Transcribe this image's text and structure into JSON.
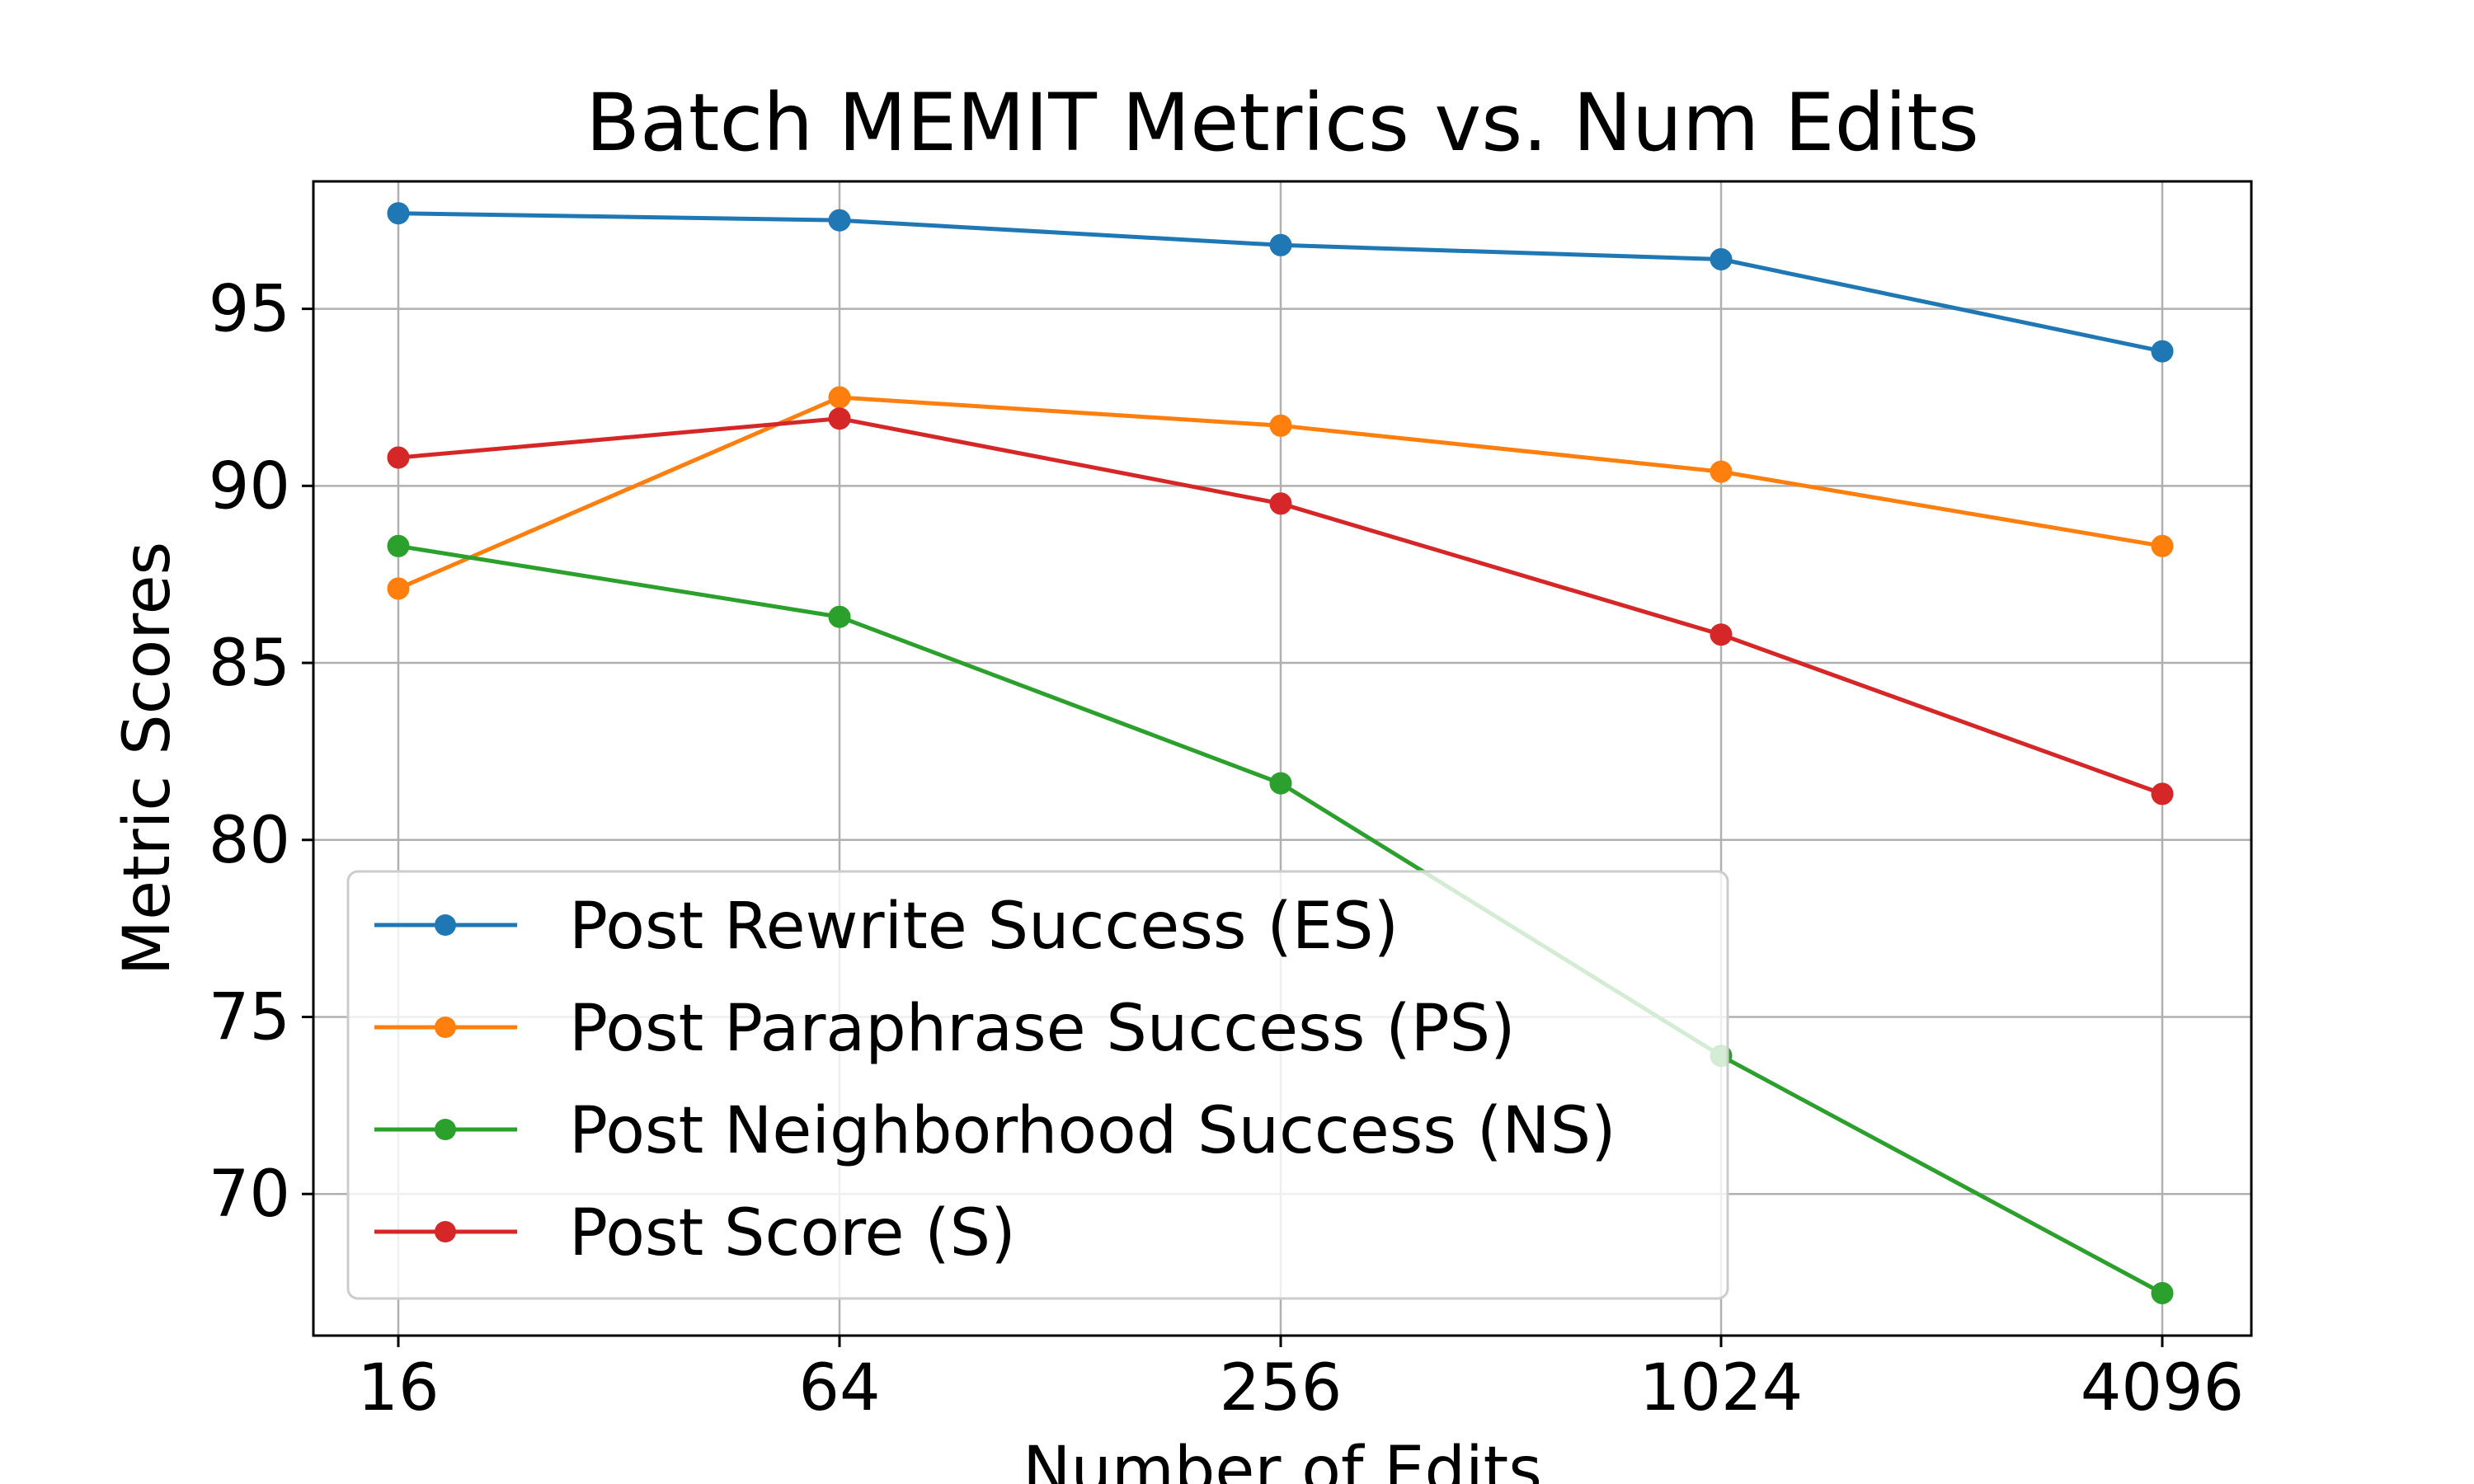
{
  "chart_data": {
    "type": "line",
    "title": "Batch MEMIT Metrics vs. Num Edits",
    "xlabel": "Number of Edits",
    "ylabel": "Metric Scores",
    "x_scale": "log2",
    "categories": [
      "16",
      "64",
      "256",
      "1024",
      "4096"
    ],
    "x": [
      16,
      64,
      256,
      1024,
      4096
    ],
    "ylim": [
      66.0,
      98.6
    ],
    "yticks": [
      70,
      75,
      80,
      85,
      90,
      95
    ],
    "grid": true,
    "legend_position": "lower-left",
    "series": [
      {
        "name": "Post Rewrite Success (ES)",
        "color": "#1f77b4",
        "values": [
          97.7,
          97.5,
          96.8,
          96.4,
          93.8
        ]
      },
      {
        "name": "Post Paraphrase Success (PS)",
        "color": "#ff7f0e",
        "values": [
          87.1,
          92.5,
          91.7,
          90.4,
          88.3
        ]
      },
      {
        "name": "Post Neighborhood Success (NS)",
        "color": "#2ca02c",
        "values": [
          88.3,
          86.3,
          81.6,
          73.9,
          67.2
        ]
      },
      {
        "name": "Post Score (S)",
        "color": "#d62728",
        "values": [
          90.8,
          91.9,
          89.5,
          85.8,
          81.3
        ]
      }
    ]
  }
}
